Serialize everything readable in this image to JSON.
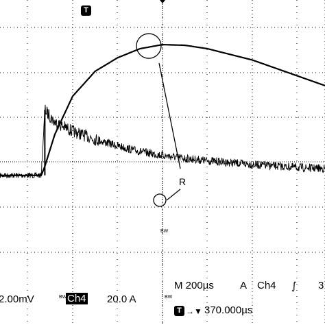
{
  "chart_data": {
    "type": "line",
    "title": "",
    "xlabel": "",
    "ylabel": "",
    "grid": true,
    "x_unit": "µs",
    "x_range": [
      -840,
      1190
    ],
    "trigger_marker_label": "T",
    "annotation": {
      "label": "R",
      "circled_points": [
        {
          "x": 0,
          "y": 5.18
        },
        {
          "x": 0,
          "y": 0.28
        }
      ]
    },
    "series": [
      {
        "name": "",
        "channel": "Ch4",
        "scale": "20.0 A",
        "noisy": false,
        "x": [
          -840,
          -270,
          -262,
          -240,
          -200,
          -150,
          -100,
          -50,
          0,
          50,
          100,
          200,
          300,
          400,
          500,
          600,
          700,
          800,
          900,
          1000,
          1100,
          1190
        ],
        "y": [
          -0.6,
          -0.6,
          -0.2,
          1.2,
          2.9,
          4.0,
          4.6,
          5.0,
          5.18,
          5.15,
          5.0,
          4.5,
          3.8,
          3.1,
          2.4,
          1.7,
          1.1,
          0.6,
          0.25,
          0.0,
          -0.25,
          -0.4
        ]
      },
      {
        "name": "",
        "channel": "",
        "scale": "2.00mV",
        "noisy": true,
        "x": [
          -840,
          -270,
          -262,
          -240,
          -200,
          -150,
          -100,
          -50,
          0,
          50,
          100,
          200,
          300,
          400,
          500,
          600,
          700,
          800,
          900,
          1000,
          1100,
          1190
        ],
        "y": [
          -0.6,
          -0.6,
          2.3,
          1.75,
          1.35,
          1.0,
          0.7,
          0.45,
          0.28,
          0.15,
          0.05,
          -0.12,
          -0.25,
          -0.33,
          -0.38,
          -0.42,
          -0.45,
          -0.48,
          -0.5,
          -0.52,
          -0.54,
          -0.55
        ]
      }
    ]
  },
  "readouts": {
    "ch_a_scale": "2.00mV",
    "bw_label": "BW",
    "ch4_label": "Ch4",
    "ch4_scale": "20.0 A",
    "timebase": "M 200µs",
    "trigger_mode": "A",
    "trigger_source": "Ch4",
    "trigger_edge_icon": "rising-edge-icon",
    "trigger_level_partial": "3",
    "trigger_position_label": "T",
    "trigger_position_arrow": "→▼",
    "trigger_position_value": "370.000µs"
  }
}
